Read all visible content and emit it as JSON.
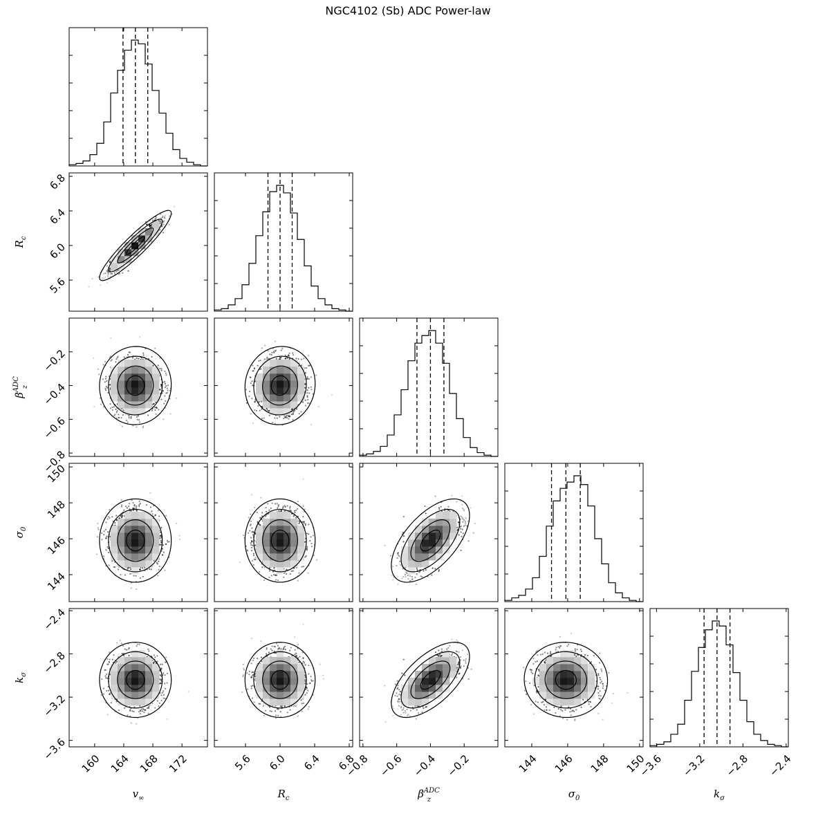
{
  "chart_data": {
    "type": "corner",
    "title": "NGC4102 (Sb) ADC Power-law",
    "parameters": [
      {
        "label": "v∞",
        "range": [
          156.5,
          175.5
        ],
        "ticks": [
          160,
          164,
          168,
          172
        ],
        "tick_labels": [
          "160",
          "164",
          "168",
          "172"
        ],
        "median": 165.6,
        "sigma": 1.7,
        "quantiles": [
          163.9,
          165.6,
          167.3
        ],
        "hist": [
          0.01,
          0.02,
          0.04,
          0.09,
          0.18,
          0.35,
          0.58,
          0.76,
          0.92,
          1.0,
          0.97,
          0.81,
          0.6,
          0.42,
          0.26,
          0.13,
          0.06,
          0.03,
          0.01,
          0.0
        ]
      },
      {
        "label": "Rc",
        "range": [
          5.24,
          6.84
        ],
        "ticks": [
          5.6,
          6.0,
          6.4,
          6.8
        ],
        "tick_labels": [
          "5.6",
          "6.0",
          "6.4",
          "6.8"
        ],
        "median": 6.0,
        "sigma": 0.14,
        "quantiles": [
          5.86,
          6.0,
          6.14
        ],
        "hist": [
          0.01,
          0.02,
          0.05,
          0.1,
          0.21,
          0.38,
          0.6,
          0.79,
          0.95,
          1.0,
          0.94,
          0.78,
          0.57,
          0.36,
          0.2,
          0.1,
          0.05,
          0.02,
          0.01,
          0.0
        ]
      },
      {
        "label": "βz^ADC",
        "range": [
          -0.82,
          0.0
        ],
        "ticks": [
          -0.8,
          -0.6,
          -0.4,
          -0.2
        ],
        "tick_labels": [
          "−0.8",
          "−0.6",
          "−0.4",
          "−0.2"
        ],
        "median": -0.4,
        "sigma": 0.08,
        "quantiles": [
          -0.48,
          -0.4,
          -0.32
        ],
        "hist": [
          0.01,
          0.02,
          0.04,
          0.08,
          0.17,
          0.33,
          0.53,
          0.76,
          0.9,
          0.96,
          1.0,
          0.9,
          0.74,
          0.5,
          0.3,
          0.15,
          0.07,
          0.03,
          0.01,
          0.0
        ]
      },
      {
        "label": "σ0",
        "range": [
          142.5,
          150.2
        ],
        "ticks": [
          144,
          146,
          148,
          150
        ],
        "tick_labels": [
          "144",
          "146",
          "148",
          "150"
        ],
        "median": 145.9,
        "sigma": 0.8,
        "quantiles": [
          145.1,
          145.9,
          146.7
        ],
        "hist": [
          0.01,
          0.03,
          0.05,
          0.1,
          0.19,
          0.36,
          0.6,
          0.8,
          0.9,
          0.95,
          1.0,
          0.93,
          0.76,
          0.5,
          0.3,
          0.15,
          0.07,
          0.03,
          0.01,
          0.0
        ]
      },
      {
        "label": "kσ",
        "range": [
          -3.66,
          -2.38
        ],
        "ticks": [
          -3.6,
          -3.2,
          -2.8,
          -2.4
        ],
        "tick_labels": [
          "−3.6",
          "−3.2",
          "−2.8",
          "−2.4"
        ],
        "median": -3.04,
        "sigma": 0.12,
        "quantiles": [
          -3.16,
          -3.04,
          -2.92
        ],
        "hist": [
          0.01,
          0.02,
          0.04,
          0.1,
          0.18,
          0.37,
          0.6,
          0.79,
          0.93,
          1.0,
          0.96,
          0.81,
          0.59,
          0.37,
          0.2,
          0.1,
          0.05,
          0.02,
          0.01,
          0.0
        ]
      }
    ],
    "correlations": [
      {
        "row": 1,
        "col": 0,
        "rho": 0.92
      },
      {
        "row": 2,
        "col": 0,
        "rho": 0.02
      },
      {
        "row": 2,
        "col": 1,
        "rho": 0.05
      },
      {
        "row": 3,
        "col": 0,
        "rho": 0.0
      },
      {
        "row": 3,
        "col": 1,
        "rho": 0.0
      },
      {
        "row": 3,
        "col": 2,
        "rho": 0.6
      },
      {
        "row": 4,
        "col": 0,
        "rho": 0.0
      },
      {
        "row": 4,
        "col": 1,
        "rho": 0.0
      },
      {
        "row": 4,
        "col": 2,
        "rho": 0.62
      },
      {
        "row": 4,
        "col": 3,
        "rho": -0.02
      }
    ],
    "contour_levels_sigma": [
      0.5,
      1.0,
      1.5,
      2.0
    ],
    "grid": false
  },
  "colors": {
    "ink": "#000000",
    "background": "#ffffff"
  }
}
